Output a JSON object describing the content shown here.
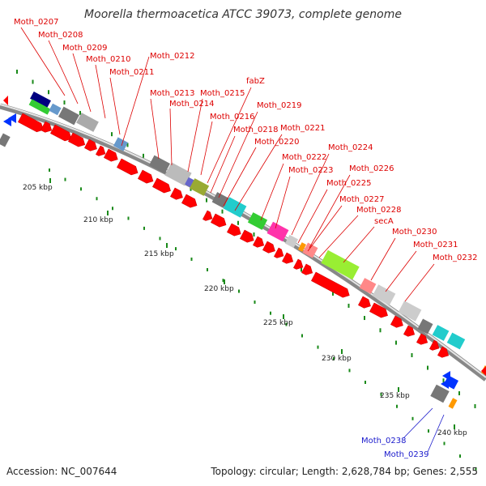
{
  "title": "Moorella thermoacetica ATCC 39073, complete genome",
  "footer": {
    "accession": "Accession: NC_007644",
    "summary": "Topology: circular; Length: 2,628,784 bp; Genes: 2,555"
  },
  "colors": {
    "forward_cds": "#ff0000",
    "reverse_cds": "#0033ff",
    "forward_label": "#dd0000",
    "reverse_label": "#1a1acc",
    "backbone": "#888888",
    "gc_tick": "#1a8a1a"
  },
  "scale": [
    "205 kbp",
    "210 kbp",
    "215 kbp",
    "220 kbp",
    "225 kbp",
    "230 kbp",
    "235 kbp",
    "240 kbp"
  ],
  "forward_labels": [
    "Moth_0207",
    "Moth_0208",
    "Moth_0209",
    "Moth_0210",
    "Moth_0211",
    "Moth_0212",
    "Moth_0213",
    "Moth_0214",
    "Moth_0215",
    "fabZ",
    "Moth_0216",
    "Moth_0219",
    "Moth_0218",
    "Moth_0221",
    "Moth_0220",
    "Moth_0222",
    "Moth_0224",
    "Moth_0223",
    "Moth_0226",
    "Moth_0225",
    "Moth_0227",
    "Moth_0228",
    "secA",
    "Moth_0230",
    "Moth_0231",
    "Moth_0232"
  ],
  "reverse_labels": [
    "Moth_0238",
    "Moth_0239"
  ]
}
